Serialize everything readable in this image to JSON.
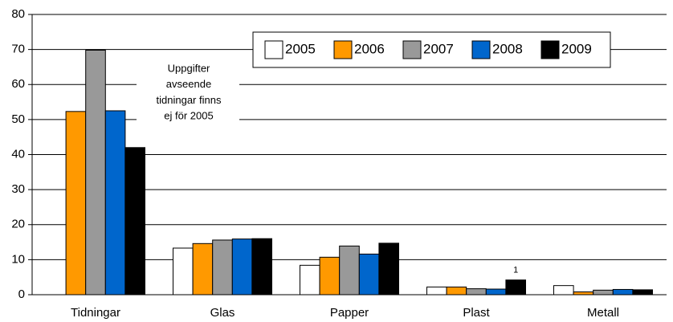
{
  "chart_data": {
    "type": "bar",
    "categories": [
      "Tidningar",
      "Glas",
      "Papper",
      "Plast",
      "Metall"
    ],
    "series": [
      {
        "name": "2005",
        "color": "#ffffff",
        "values": [
          null,
          13.3,
          8.4,
          2.2,
          2.6
        ]
      },
      {
        "name": "2006",
        "color": "#ff9900",
        "values": [
          52.3,
          14.6,
          10.7,
          2.2,
          0.8
        ]
      },
      {
        "name": "2007",
        "color": "#999999",
        "values": [
          69.8,
          15.6,
          13.9,
          1.7,
          1.3
        ]
      },
      {
        "name": "2008",
        "color": "#0066cc",
        "values": [
          52.5,
          15.9,
          11.6,
          1.6,
          1.5
        ]
      },
      {
        "name": "2009",
        "color": "#000000",
        "values": [
          42,
          16.0,
          14.7,
          4.2,
          1.4
        ]
      }
    ],
    "ylim": [
      0,
      80
    ],
    "yticks": [
      0,
      10,
      20,
      30,
      40,
      50,
      60,
      70,
      80
    ],
    "grid": true,
    "legend": "top-right",
    "annotations": [
      {
        "lines": [
          "Uppgifter",
          "avseende",
          "tidningar finns",
          "ej för 2005"
        ]
      },
      {
        "text": "1"
      }
    ]
  }
}
